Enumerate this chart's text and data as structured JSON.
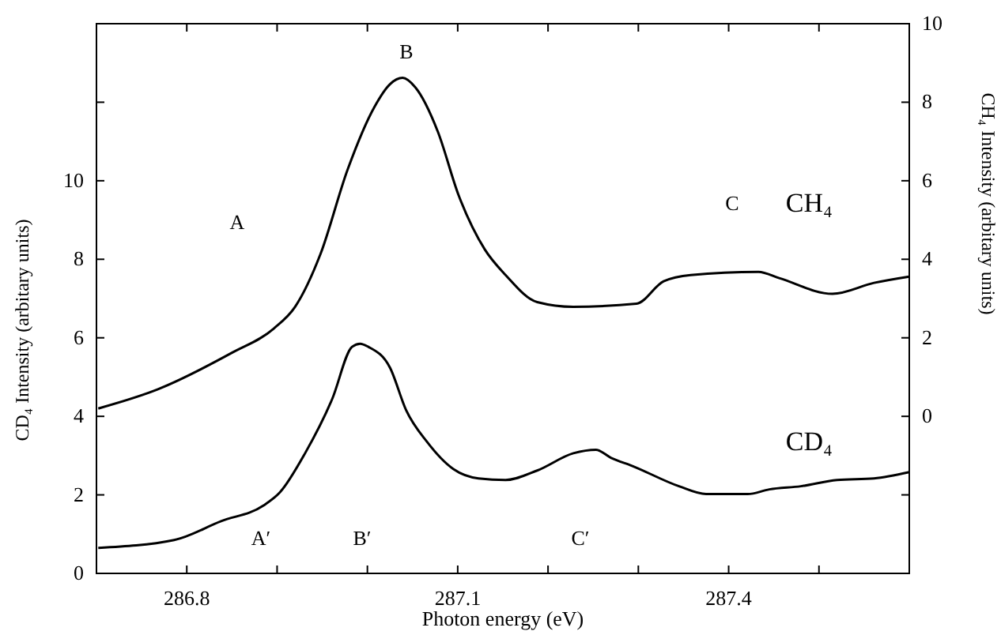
{
  "chart_data": {
    "type": "line",
    "xlabel": "Photon energy (eV)",
    "ylabel": "CD₄ Intensity (arbitary units)",
    "y2label": "CH₄ Intensity (arbitary units)",
    "xlim": [
      286.7,
      287.6
    ],
    "xticks": [
      286.8,
      {
        "value": 286.9,
        "label": null
      },
      {
        "value": 287.0,
        "label": null
      },
      287.1,
      {
        "value": 287.2,
        "label": null
      },
      {
        "value": 287.3,
        "label": null
      },
      287.4,
      {
        "value": 287.5,
        "label": null
      }
    ],
    "ylim": [
      0,
      14
    ],
    "yticks": [
      0,
      2,
      4,
      6,
      8,
      10,
      {
        "value": 12,
        "label": null
      }
    ],
    "y2lim": [
      -4,
      10
    ],
    "y2ticks": [
      {
        "value": -2,
        "label": null
      },
      0,
      2,
      4,
      6,
      8,
      10
    ],
    "grid": false,
    "marker": "none",
    "line_style": "solid",
    "series": [
      {
        "name": "CH₄",
        "color": "#000000",
        "axis": "y2",
        "x": [
          286.702,
          286.768,
          286.85,
          286.896,
          286.92,
          286.948,
          286.978,
          287.008,
          287.025,
          287.039,
          287.053,
          287.078,
          287.101,
          287.13,
          287.153,
          287.188,
          287.228,
          287.298,
          287.328,
          287.358,
          287.433,
          287.456,
          287.515,
          287.561,
          287.6
        ],
        "values": [
          0.2,
          0.69,
          1.62,
          2.23,
          2.79,
          4.13,
          6.28,
          7.89,
          8.46,
          8.62,
          8.38,
          7.25,
          5.63,
          4.25,
          3.6,
          2.91,
          2.79,
          2.87,
          3.44,
          3.6,
          3.68,
          3.52,
          3.12,
          3.4,
          3.56
        ]
      },
      {
        "name": "CD₄",
        "color": "#000000",
        "x": [
          286.702,
          286.786,
          286.838,
          286.885,
          286.903,
          286.931,
          286.961,
          286.983,
          286.992,
          287.001,
          287.025,
          287.043,
          287.066,
          287.095,
          287.123,
          287.153,
          287.188,
          287.228,
          287.253,
          287.27,
          287.293,
          287.345,
          287.375,
          287.421,
          287.445,
          287.48,
          287.52,
          287.561,
          287.6
        ],
        "values": [
          0.65,
          0.85,
          1.33,
          1.73,
          2.06,
          3.06,
          4.44,
          5.77,
          5.85,
          5.77,
          5.24,
          4.15,
          3.35,
          2.66,
          2.42,
          2.38,
          2.62,
          3.06,
          3.15,
          2.94,
          2.74,
          2.22,
          2.02,
          2.02,
          2.14,
          2.22,
          2.38,
          2.42,
          2.58
        ]
      }
    ],
    "annotations": [
      "A",
      "B",
      "C",
      "A′",
      "B′",
      "C′"
    ]
  }
}
